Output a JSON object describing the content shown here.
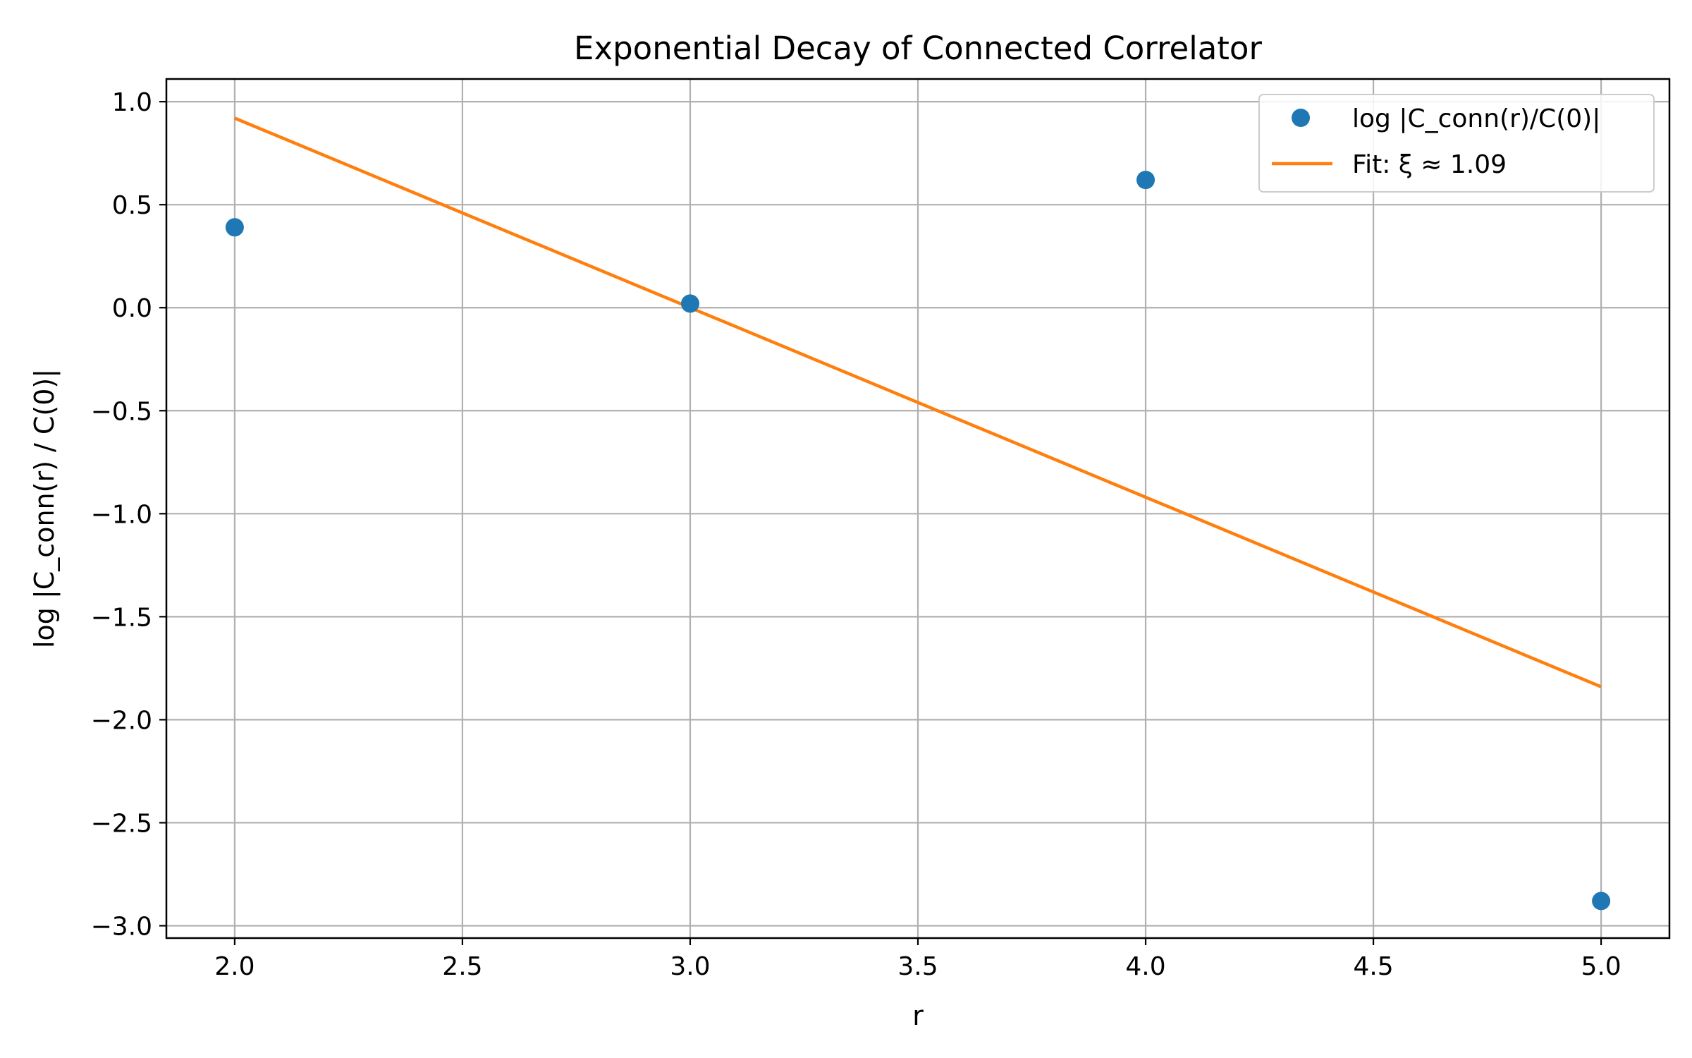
{
  "chart_data": {
    "type": "scatter",
    "title": "Exponential Decay of Connected Correlator",
    "xlabel": "r",
    "ylabel": "log |C_conn(r) / C(0)|",
    "xlim": [
      1.85,
      5.15
    ],
    "ylim": [
      -3.06,
      1.11
    ],
    "xticks": [
      2.0,
      2.5,
      3.0,
      3.5,
      4.0,
      4.5,
      5.0
    ],
    "xtick_labels": [
      "2.0",
      "2.5",
      "3.0",
      "3.5",
      "4.0",
      "4.5",
      "5.0"
    ],
    "yticks": [
      1.0,
      0.5,
      0.0,
      -0.5,
      -1.0,
      -1.5,
      -2.0,
      -2.5,
      -3.0
    ],
    "ytick_labels": [
      "1.0",
      "0.5",
      "0.0",
      "−0.5",
      "−1.0",
      "−1.5",
      "−2.0",
      "−2.5",
      "−3.0"
    ],
    "grid": true,
    "legend_position": "top-right",
    "series": [
      {
        "name": "log |C_conn(r)/C(0)|",
        "type": "scatter",
        "color": "#1f77b4",
        "x": [
          2,
          3,
          4,
          5
        ],
        "y": [
          0.39,
          0.02,
          0.62,
          -2.88
        ]
      },
      {
        "name": "Fit: ξ ≈ 1.09",
        "type": "line",
        "color": "#ff7f0e",
        "x": [
          2,
          5
        ],
        "y": [
          0.92,
          -1.84
        ]
      }
    ]
  }
}
